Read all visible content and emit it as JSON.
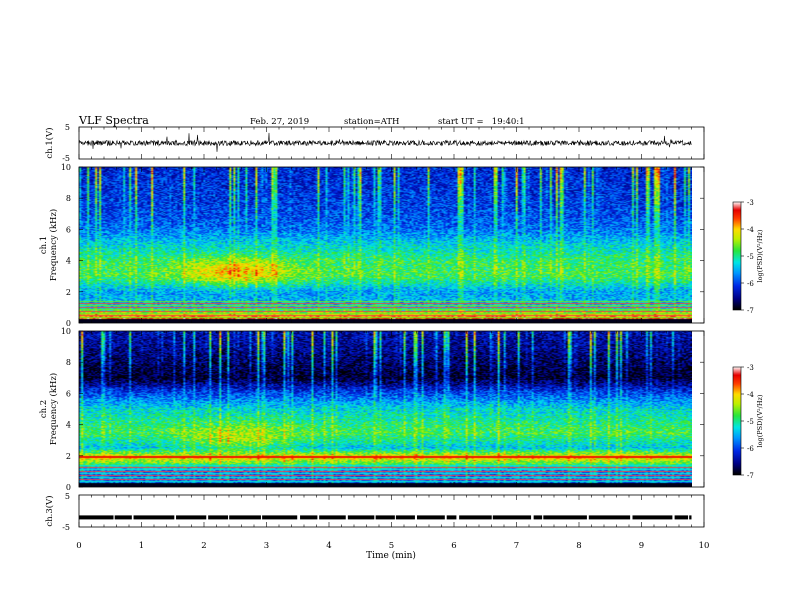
{
  "header": {
    "title": "VLF Spectra",
    "date": "Feb. 27, 2019",
    "station": "station=ATH",
    "start": "start UT =   19:40:1"
  },
  "chart_data": {
    "type": "heatmap",
    "xlabel": "Time (min)",
    "xlim": [
      0,
      10
    ],
    "x_ticks": [
      "0",
      "1",
      "2",
      "3",
      "4",
      "5",
      "6",
      "7",
      "8",
      "9",
      "10"
    ],
    "data_end_min": 9.8,
    "panels": [
      {
        "id": "ch1",
        "type": "line",
        "ylabel": "ch.1(V)",
        "ylim": [
          -5,
          5
        ],
        "y_ticks": [
          "5",
          "-5"
        ],
        "baseline_v": 0
      },
      {
        "id": "ch1_spec",
        "type": "heatmap",
        "ylabel": "ch.1\nFrequency (kHz)",
        "ylim": [
          0,
          10
        ],
        "y_ticks": [
          "0",
          "2",
          "4",
          "6",
          "8",
          "10"
        ],
        "colorbar": {
          "label": "log(PSD)(V²/Hz)",
          "range": [
            -7,
            -3
          ],
          "ticks": [
            "-3",
            "-4",
            "-5",
            "-6",
            "-7"
          ]
        },
        "band_profile_log_psd": [
          {
            "khz": 0.3,
            "v": -3.6
          },
          {
            "khz": 1.0,
            "v": -5.4
          },
          {
            "khz": 2.0,
            "v": -5.6
          },
          {
            "khz": 3.0,
            "v": -4.8
          },
          {
            "khz": 4.0,
            "v": -4.9
          },
          {
            "khz": 5.0,
            "v": -5.3
          },
          {
            "khz": 6.0,
            "v": -5.8
          },
          {
            "khz": 7.0,
            "v": -6.0
          },
          {
            "khz": 8.0,
            "v": -6.1
          },
          {
            "khz": 10.0,
            "v": -6.2
          }
        ],
        "hotspot": {
          "min": 2.5,
          "khz": 3.3,
          "log_psd": -3.8
        }
      },
      {
        "id": "ch2_spec",
        "type": "heatmap",
        "ylabel": "ch.2\nFrequency (kHz)",
        "ylim": [
          0,
          10
        ],
        "y_ticks": [
          "0",
          "2",
          "4",
          "6",
          "8",
          "10"
        ],
        "colorbar": {
          "label": "log(PSD)(V²/Hz)",
          "range": [
            -7,
            -3
          ],
          "ticks": [
            "-3",
            "-4",
            "-5",
            "-6",
            "-7"
          ]
        },
        "band_profile_log_psd": [
          {
            "khz": 0.3,
            "v": -5.8
          },
          {
            "khz": 1.0,
            "v": -5.8
          },
          {
            "khz": 1.9,
            "v": -4.0
          },
          {
            "khz": 2.5,
            "v": -5.4
          },
          {
            "khz": 3.5,
            "v": -4.8
          },
          {
            "khz": 5.0,
            "v": -5.3
          },
          {
            "khz": 6.0,
            "v": -6.0
          },
          {
            "khz": 7.0,
            "v": -6.9
          },
          {
            "khz": 8.5,
            "v": -6.6
          },
          {
            "khz": 10.0,
            "v": -6.4
          }
        ],
        "hotspot": {
          "min": 2.5,
          "khz": 3.2,
          "log_psd": -4.2
        }
      },
      {
        "id": "ch3",
        "type": "line",
        "ylabel": "ch.3(V)",
        "ylim": [
          -5,
          5
        ],
        "y_ticks": [
          "5",
          "-5"
        ],
        "baseline_v": -2
      }
    ]
  }
}
